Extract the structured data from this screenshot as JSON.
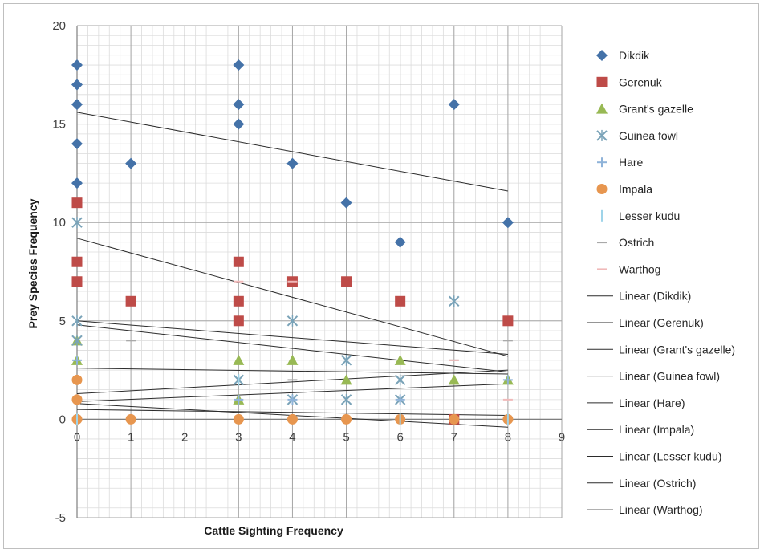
{
  "chart_data": {
    "type": "scatter",
    "title": "",
    "xlabel": "Cattle Sighting Frequency",
    "ylabel": "Prey Species Frequency",
    "xlim": [
      0,
      9
    ],
    "ylim": [
      -5,
      20
    ],
    "x_ticks": [
      0,
      1,
      2,
      3,
      4,
      5,
      6,
      7,
      8,
      9
    ],
    "y_ticks": [
      -5,
      0,
      5,
      10,
      15,
      20
    ],
    "minor_grid": {
      "x_step": 0.2,
      "y_step": 0.5
    },
    "grid": true,
    "legend_position": "right",
    "series": [
      {
        "name": "Dikdik",
        "marker": "diamond",
        "color": "#4472a8",
        "points": [
          [
            0,
            18
          ],
          [
            0,
            17
          ],
          [
            0,
            16
          ],
          [
            0,
            14
          ],
          [
            0,
            12
          ],
          [
            1,
            13
          ],
          [
            3,
            18
          ],
          [
            3,
            16
          ],
          [
            3,
            15
          ],
          [
            4,
            13
          ],
          [
            5,
            11
          ],
          [
            6,
            9
          ],
          [
            7,
            16
          ],
          [
            8,
            10
          ]
        ]
      },
      {
        "name": "Gerenuk",
        "marker": "square",
        "color": "#be4b48",
        "points": [
          [
            0,
            11
          ],
          [
            0,
            8
          ],
          [
            0,
            7
          ],
          [
            1,
            6
          ],
          [
            3,
            8
          ],
          [
            3,
            6
          ],
          [
            3,
            5
          ],
          [
            4,
            7
          ],
          [
            5,
            7
          ],
          [
            6,
            6
          ],
          [
            7,
            0
          ],
          [
            8,
            5
          ]
        ]
      },
      {
        "name": "Grant's gazelle",
        "marker": "triangle",
        "color": "#98b954",
        "points": [
          [
            0,
            4
          ],
          [
            0,
            3
          ],
          [
            3,
            3
          ],
          [
            3,
            1
          ],
          [
            4,
            3
          ],
          [
            5,
            2
          ],
          [
            6,
            3
          ],
          [
            7,
            2
          ],
          [
            8,
            2
          ]
        ]
      },
      {
        "name": "Guinea fowl",
        "marker": "x",
        "color": "#7aa3b8",
        "points": [
          [
            0,
            10
          ],
          [
            0,
            5
          ],
          [
            0,
            4
          ],
          [
            3,
            2
          ],
          [
            4,
            5
          ],
          [
            4,
            1
          ],
          [
            5,
            3
          ],
          [
            5,
            1
          ],
          [
            6,
            2
          ],
          [
            6,
            1
          ],
          [
            7,
            6
          ]
        ]
      },
      {
        "name": "Hare",
        "marker": "plus",
        "color": "#8fb3d9",
        "points": [
          [
            0,
            3
          ],
          [
            3,
            1
          ],
          [
            4,
            1
          ],
          [
            6,
            1
          ],
          [
            8,
            2
          ]
        ]
      },
      {
        "name": "Impala",
        "marker": "circle",
        "color": "#e7964f",
        "points": [
          [
            0,
            2
          ],
          [
            0,
            1
          ],
          [
            0,
            0
          ],
          [
            1,
            0
          ],
          [
            3,
            0
          ],
          [
            4,
            0
          ],
          [
            5,
            0
          ],
          [
            6,
            0
          ],
          [
            7,
            0
          ],
          [
            8,
            0
          ]
        ]
      },
      {
        "name": "Lesser kudu",
        "marker": "bar",
        "color": "#9fd4e9",
        "points": [
          [
            0,
            0
          ],
          [
            3,
            2
          ],
          [
            6,
            0
          ],
          [
            8,
            0
          ]
        ]
      },
      {
        "name": "Ostrich",
        "marker": "dash",
        "color": "#a9a9a9",
        "points": [
          [
            1,
            4
          ],
          [
            4,
            2
          ],
          [
            7,
            3
          ],
          [
            8,
            4
          ]
        ]
      },
      {
        "name": "Warthog",
        "marker": "dash",
        "color": "#f0b9b9",
        "points": [
          [
            3,
            7
          ],
          [
            4,
            7
          ],
          [
            7,
            3
          ],
          [
            8,
            1
          ]
        ]
      }
    ],
    "trendlines": [
      {
        "name": "Linear (Dikdik)",
        "x": [
          0,
          8
        ],
        "y": [
          15.6,
          11.6
        ]
      },
      {
        "name": "Linear (Gerenuk)",
        "x": [
          0,
          8
        ],
        "y": [
          9.2,
          3.2
        ]
      },
      {
        "name": "Linear (Grant's gazelle)",
        "x": [
          0,
          8
        ],
        "y": [
          2.6,
          2.3
        ]
      },
      {
        "name": "Linear (Guinea fowl)",
        "x": [
          0,
          8
        ],
        "y": [
          4.8,
          2.4
        ]
      },
      {
        "name": "Linear (Hare)",
        "x": [
          0,
          8
        ],
        "y": [
          0.9,
          1.8
        ]
      },
      {
        "name": "Linear (Impala)",
        "x": [
          0,
          8
        ],
        "y": [
          0.8,
          -0.4
        ]
      },
      {
        "name": "Linear (Lesser kudu)",
        "x": [
          0,
          8
        ],
        "y": [
          0.5,
          0.2
        ]
      },
      {
        "name": "Linear (Ostrich)",
        "x": [
          0,
          8
        ],
        "y": [
          1.3,
          2.5
        ]
      },
      {
        "name": "Linear (Warthog)",
        "x": [
          0,
          8
        ],
        "y": [
          5.0,
          3.3
        ]
      }
    ]
  }
}
